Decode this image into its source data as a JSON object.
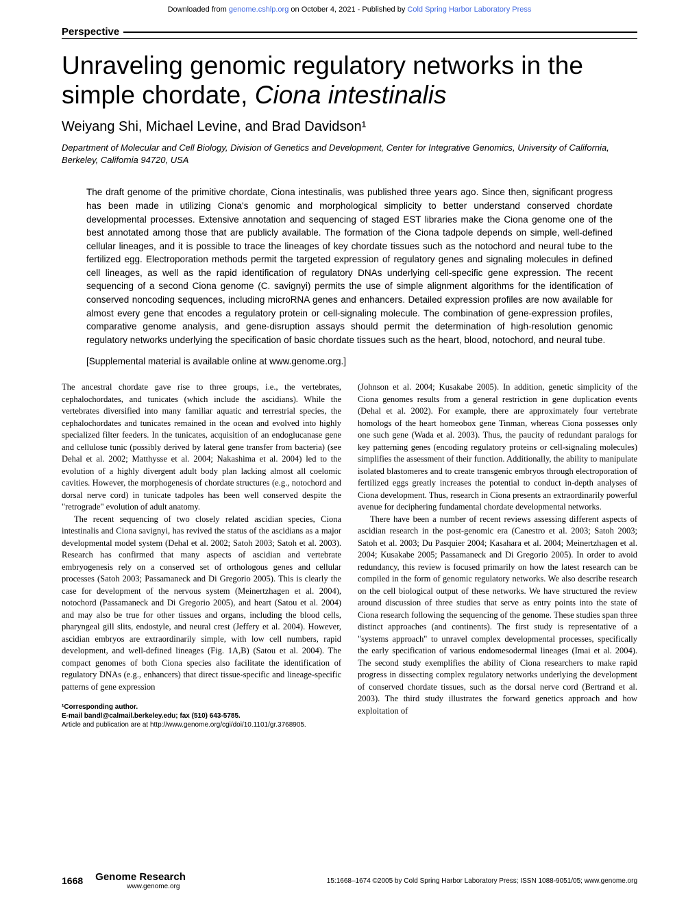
{
  "header_bar": {
    "prefix": "Downloaded from ",
    "link1": "genome.cshlp.org",
    "mid": " on October 4, 2021 - Published by ",
    "link2": "Cold Spring Harbor Laboratory Press"
  },
  "section_label": "Perspective",
  "title_part1": "Unraveling genomic regulatory networks in the simple chordate, ",
  "title_italic": "Ciona intestinalis",
  "authors": "Weiyang Shi, Michael Levine, and Brad Davidson¹",
  "affiliation": "Department of Molecular and Cell Biology, Division of Genetics and Development, Center for Integrative Genomics, University of California, Berkeley, California 94720, USA",
  "abstract": "The draft genome of the primitive chordate, Ciona intestinalis, was published three years ago. Since then, significant progress has been made in utilizing Ciona's genomic and morphological simplicity to better understand conserved chordate developmental processes. Extensive annotation and sequencing of staged EST libraries make the Ciona genome one of the best annotated among those that are publicly available. The formation of the Ciona tadpole depends on simple, well-defined cellular lineages, and it is possible to trace the lineages of key chordate tissues such as the notochord and neural tube to the fertilized egg. Electroporation methods permit the targeted expression of regulatory genes and signaling molecules in defined cell lineages, as well as the rapid identification of regulatory DNAs underlying cell-specific gene expression. The recent sequencing of a second Ciona genome (C. savignyi) permits the use of simple alignment algorithms for the identification of conserved noncoding sequences, including microRNA genes and enhancers. Detailed expression profiles are now available for almost every gene that encodes a regulatory protein or cell-signaling molecule. The combination of gene-expression profiles, comparative genome analysis, and gene-disruption assays should permit the determination of high-resolution genomic regulatory networks underlying the specification of basic chordate tissues such as the heart, blood, notochord, and neural tube.",
  "supplemental": "[Supplemental material is available online at www.genome.org.]",
  "body": {
    "col1_p1": "The ancestral chordate gave rise to three groups, i.e., the vertebrates, cephalochordates, and tunicates (which include the ascidians). While the vertebrates diversified into many familiar aquatic and terrestrial species, the cephalochordates and tunicates remained in the ocean and evolved into highly specialized filter feeders. In the tunicates, acquisition of an endoglucanase gene and cellulose tunic (possibly derived by lateral gene transfer from bacteria) (see Dehal et al. 2002; Matthysse et al. 2004; Nakashima et al. 2004) led to the evolution of a highly divergent adult body plan lacking almost all coelomic cavities. However, the morphogenesis of chordate structures (e.g., notochord and dorsal nerve cord) in tunicate tadpoles has been well conserved despite the \"retrograde\" evolution of adult anatomy.",
    "col1_p2": "The recent sequencing of two closely related ascidian species, Ciona intestinalis and Ciona savignyi, has revived the status of the ascidians as a major developmental model system (Dehal et al. 2002; Satoh 2003; Satoh et al. 2003). Research has confirmed that many aspects of ascidian and vertebrate embryogenesis rely on a conserved set of orthologous genes and cellular processes (Satoh 2003; Passamaneck and Di Gregorio 2005). This is clearly the case for development of the nervous system (Meinertzhagen et al. 2004), notochord (Passamaneck and Di Gregorio 2005), and heart (Satou et al. 2004) and may also be true for other tissues and organs, including the blood cells, pharyngeal gill slits, endostyle, and neural crest (Jeffery et al. 2004). However, ascidian embryos are extraordinarily simple, with low cell numbers, rapid development, and well-defined lineages (Fig. 1A,B) (Satou et al. 2004). The compact genomes of both Ciona species also facilitate the identification of regulatory DNAs (e.g., enhancers) that direct tissue-specific and lineage-specific patterns of gene expression",
    "col2_p1": "(Johnson et al. 2004; Kusakabe 2005). In addition, genetic simplicity of the Ciona genomes results from a general restriction in gene duplication events (Dehal et al. 2002). For example, there are approximately four vertebrate homologs of the heart homeobox gene Tinman, whereas Ciona possesses only one such gene (Wada et al. 2003). Thus, the paucity of redundant paralogs for key patterning genes (encoding regulatory proteins or cell-signaling molecules) simplifies the assessment of their function. Additionally, the ability to manipulate isolated blastomeres and to create transgenic embryos through electroporation of fertilized eggs greatly increases the potential to conduct in-depth analyses of Ciona development. Thus, research in Ciona presents an extraordinarily powerful avenue for deciphering fundamental chordate developmental networks.",
    "col2_p2": "There have been a number of recent reviews assessing different aspects of ascidian research in the post-genomic era (Canestro et al. 2003; Satoh 2003; Satoh et al. 2003; Du Pasquier 2004; Kasahara et al. 2004; Meinertzhagen et al. 2004; Kusakabe 2005; Passamaneck and Di Gregorio 2005). In order to avoid redundancy, this review is focused primarily on how the latest research can be compiled in the form of genomic regulatory networks. We also describe research on the cell biological output of these networks. We have structured the review around discussion of three studies that serve as entry points into the state of Ciona research following the sequencing of the genome. These studies span three distinct approaches (and continents). The first study is representative of a \"systems approach\" to unravel complex developmental processes, specifically the early specification of various endomesodermal lineages (Imai et al. 2004). The second study exemplifies the ability of Ciona researchers to make rapid progress in dissecting complex regulatory networks underlying the development of conserved chordate tissues, such as the dorsal nerve cord (Bertrand et al. 2003). The third study illustrates the forward genetics approach and how exploitation of"
  },
  "corresponding": {
    "line1": "¹Corresponding author.",
    "line2": "E-mail bandl@calmail.berkeley.edu; fax (510) 643-5785.",
    "line3": "Article and publication are at http://www.genome.org/cgi/doi/10.1101/gr.3768905."
  },
  "footer": {
    "page": "1668",
    "journal": "Genome Research",
    "url": "www.genome.org",
    "copyright": "15:1668–1674 ©2005 by Cold Spring Harbor Laboratory Press; ISSN 1088-9051/05; www.genome.org"
  },
  "colors": {
    "link": "#4169e1",
    "text": "#000000",
    "background": "#ffffff"
  }
}
